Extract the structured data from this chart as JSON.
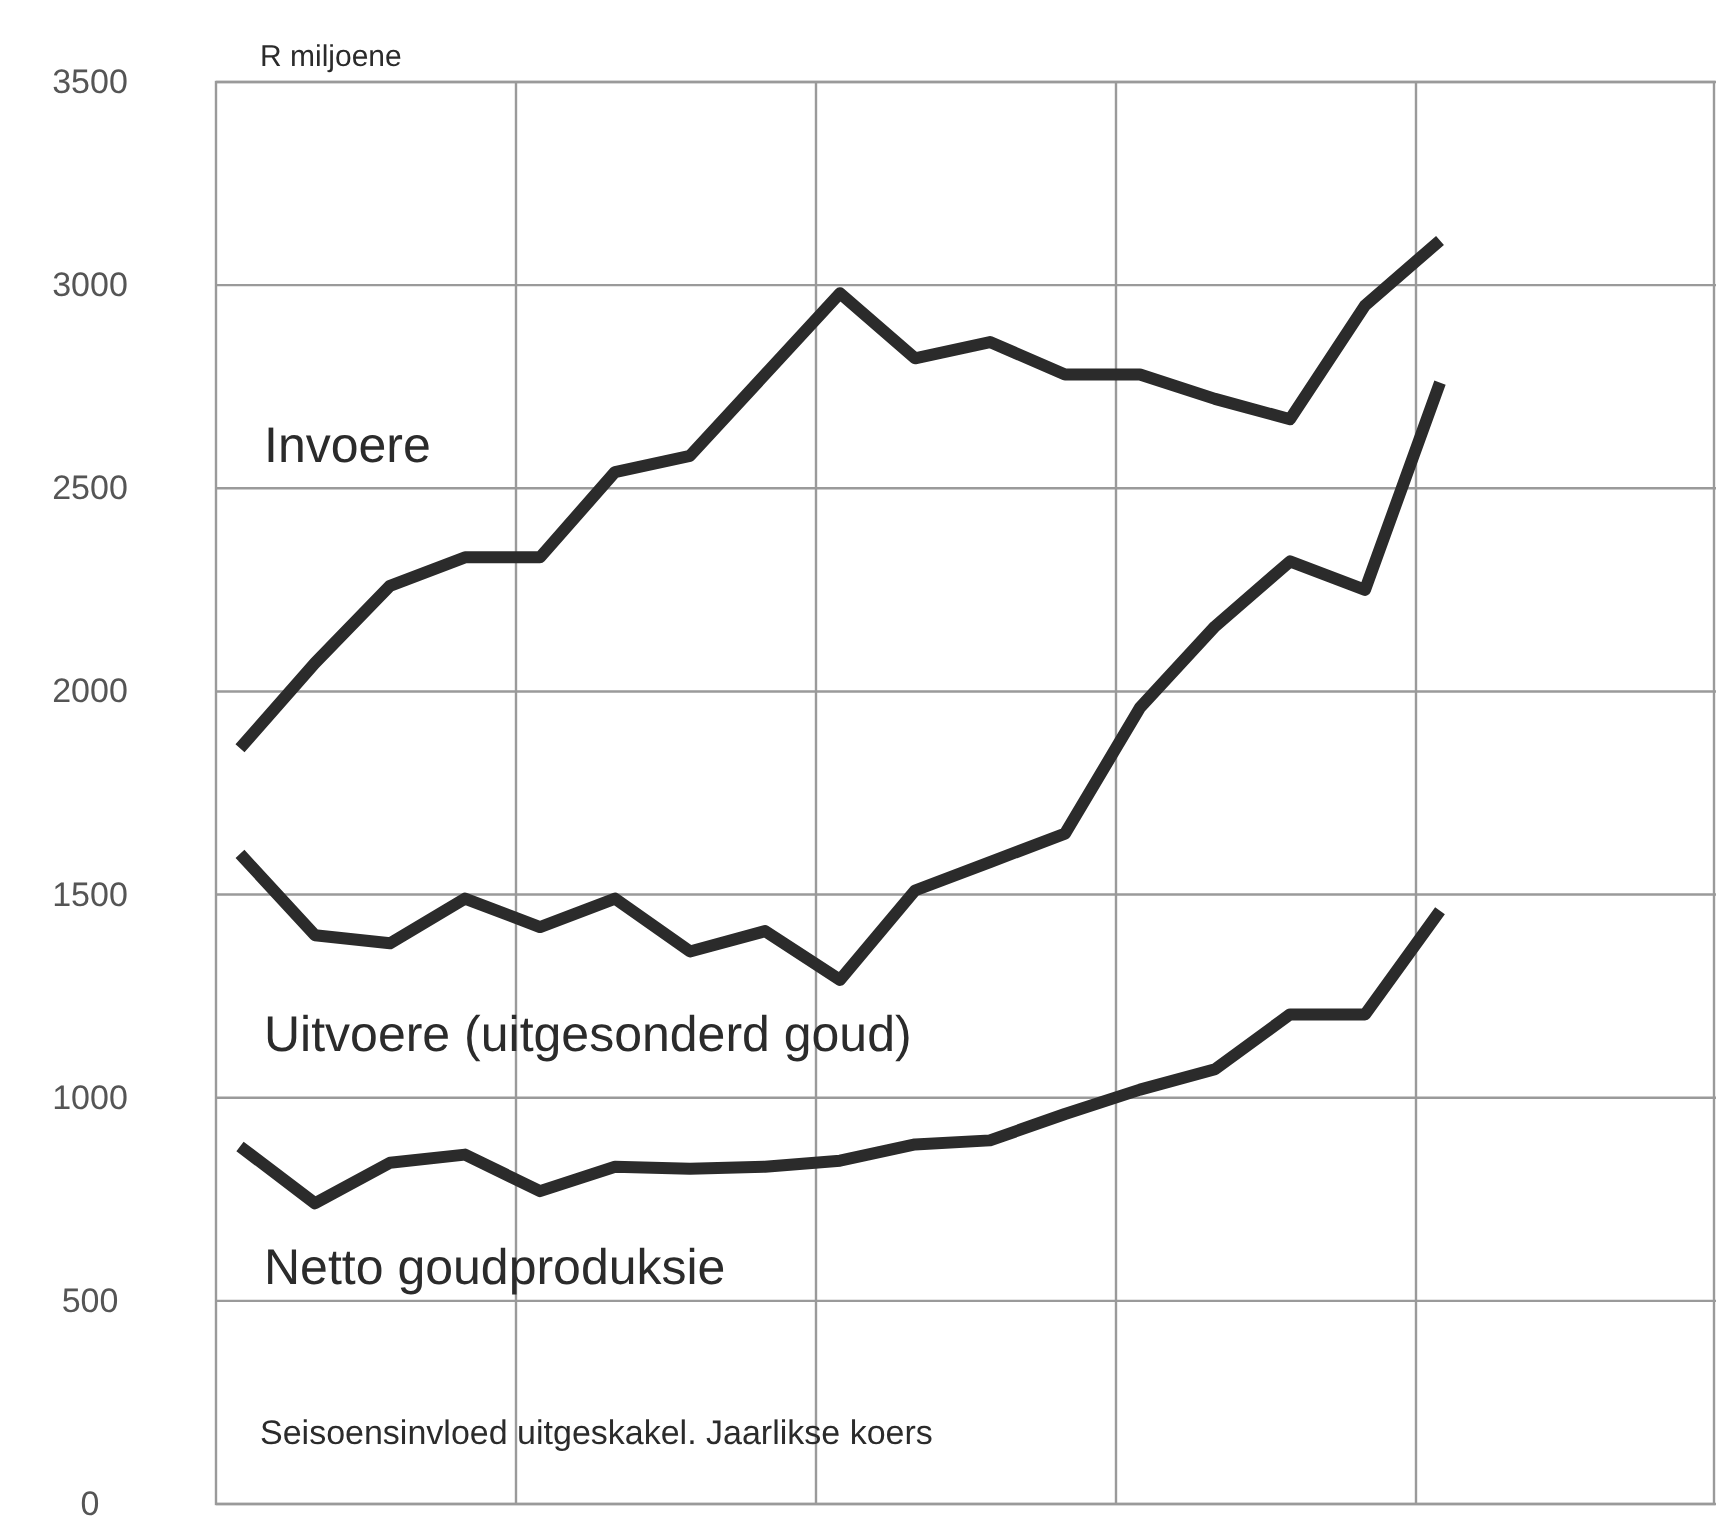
{
  "chart_data": {
    "type": "line",
    "ylabel": "R miljoene",
    "categories": [
      null,
      null,
      null,
      null,
      null,
      null,
      null,
      null,
      null,
      null,
      null,
      null,
      null,
      null,
      null,
      null,
      null
    ],
    "ylim": [
      0,
      3500
    ],
    "yticks": [
      0,
      500,
      1000,
      1500,
      2000,
      2500,
      3000,
      3500
    ],
    "tick_labels": "y",
    "grid": true,
    "legend": false,
    "marker": "none",
    "line_style": "solid",
    "series": [
      {
        "name": "Invoere",
        "color": "#2b2b2b",
        "values": [
          1860,
          2070,
          2260,
          2330,
          2330,
          2540,
          2580,
          2780,
          2980,
          2820,
          2860,
          2780,
          2780,
          2720,
          2670,
          2950,
          3110
        ]
      },
      {
        "name": "Uitvoere (uitgesonderd goud)",
        "color": "#2b2b2b",
        "values": [
          1600,
          1400,
          1380,
          1490,
          1420,
          1490,
          1360,
          1410,
          1290,
          1510,
          1580,
          1650,
          1960,
          2160,
          2320,
          2250,
          2760
        ]
      },
      {
        "name": "Netto goudproduksie",
        "color": "#2b2b2b",
        "values": [
          880,
          740,
          840,
          860,
          770,
          830,
          825,
          830,
          845,
          885,
          895,
          960,
          1020,
          1070,
          1205,
          1205,
          1460
        ]
      }
    ],
    "annotations": [
      "Seisoensinvloed uitgeskakel. Jaarlikse koers"
    ]
  }
}
